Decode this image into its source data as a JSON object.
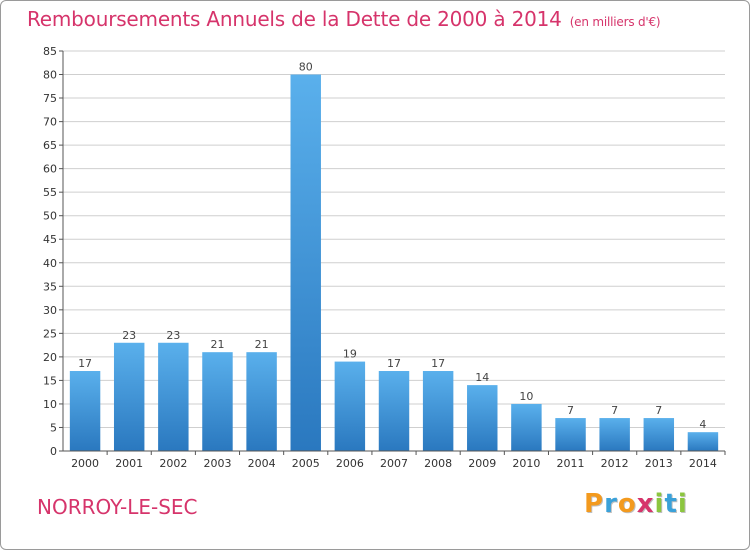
{
  "title": "Remboursements Annuels de la Dette de 2000 à 2014",
  "unit": "(en milliers d'€)",
  "commune": "NORROY-LE-SEC",
  "logo": {
    "letters": [
      "P",
      "r",
      "o",
      "x",
      "i",
      "t",
      "i"
    ],
    "colors": [
      "#f39a1e",
      "#3aa1d9",
      "#f39a1e",
      "#d6346b",
      "#8cc63f",
      "#3aa1d9",
      "#8cc63f"
    ]
  },
  "colors": {
    "title": "#d6346b",
    "bar": "#3b8fd6",
    "grid": "#cfcfcf"
  },
  "chart_data": {
    "type": "bar",
    "categories": [
      "2000",
      "2001",
      "2002",
      "2003",
      "2004",
      "2005",
      "2006",
      "2007",
      "2008",
      "2009",
      "2010",
      "2011",
      "2012",
      "2013",
      "2014"
    ],
    "values": [
      17,
      23,
      23,
      21,
      21,
      80,
      19,
      17,
      17,
      14,
      10,
      7,
      7,
      7,
      4
    ],
    "ylim": [
      0,
      85
    ],
    "yticks": [
      0,
      5,
      10,
      15,
      20,
      25,
      30,
      35,
      40,
      45,
      50,
      55,
      60,
      65,
      70,
      75,
      80,
      85
    ],
    "grid": true,
    "data_labels": true
  }
}
